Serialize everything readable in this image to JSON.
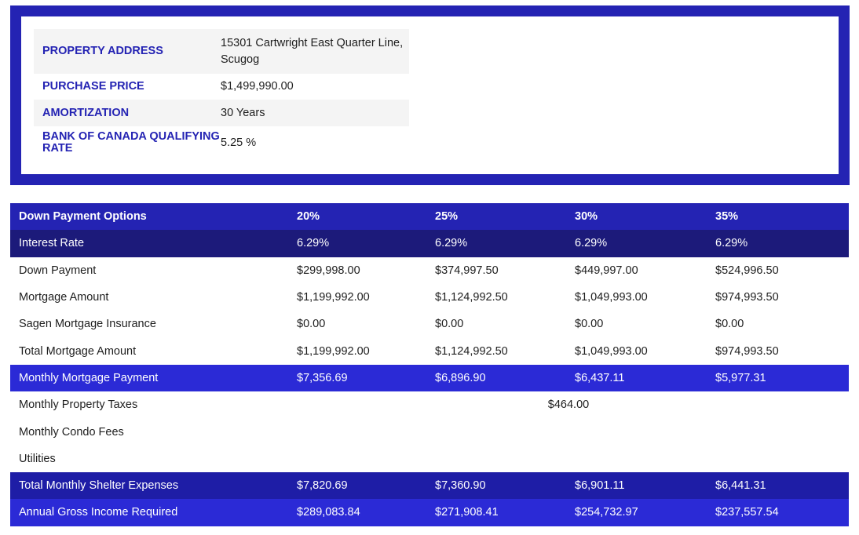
{
  "property": {
    "rows": [
      {
        "label": "PROPERTY ADDRESS",
        "value": "15301 Cartwright East Quarter Line, Scugog"
      },
      {
        "label": "PURCHASE PRICE",
        "value": "$1,499,990.00"
      },
      {
        "label": "AMORTIZATION",
        "value": "30 Years"
      },
      {
        "label": "BANK OF CANADA QUALIFYING RATE",
        "value": "5.25 %"
      }
    ]
  },
  "down_payment": {
    "header": [
      "Down Payment Options",
      "20%",
      "25%",
      "30%",
      "35%"
    ],
    "rows": [
      [
        "Interest Rate",
        "6.29%",
        "6.29%",
        "6.29%",
        "6.29%"
      ],
      [
        "Down Payment",
        "$299,998.00",
        "$374,997.50",
        "$449,997.00",
        "$524,996.50"
      ],
      [
        "Mortgage Amount",
        "$1,199,992.00",
        "$1,124,992.50",
        "$1,049,993.00",
        "$974,993.50"
      ],
      [
        "Sagen Mortgage Insurance",
        "$0.00",
        "$0.00",
        "$0.00",
        "$0.00"
      ],
      [
        "Total Mortgage Amount",
        "$1,199,992.00",
        "$1,124,992.50",
        "$1,049,993.00",
        "$974,993.50"
      ],
      [
        "Monthly Mortgage Payment",
        "$7,356.69",
        "$6,896.90",
        "$6,437.11",
        "$5,977.31"
      ]
    ],
    "property_taxes": {
      "label": "Monthly Property Taxes",
      "value": "$464.00"
    },
    "condo_fees": {
      "label": "Monthly Condo Fees",
      "value": ""
    },
    "utilities": {
      "label": "Utilities",
      "value": ""
    },
    "totals": [
      [
        "Total Monthly Shelter Expenses",
        "$7,820.69",
        "$7,360.90",
        "$6,901.11",
        "$6,441.31"
      ],
      [
        "Annual Gross Income Required",
        "$289,083.84",
        "$271,908.41",
        "$254,732.97",
        "$237,557.54"
      ]
    ]
  }
}
